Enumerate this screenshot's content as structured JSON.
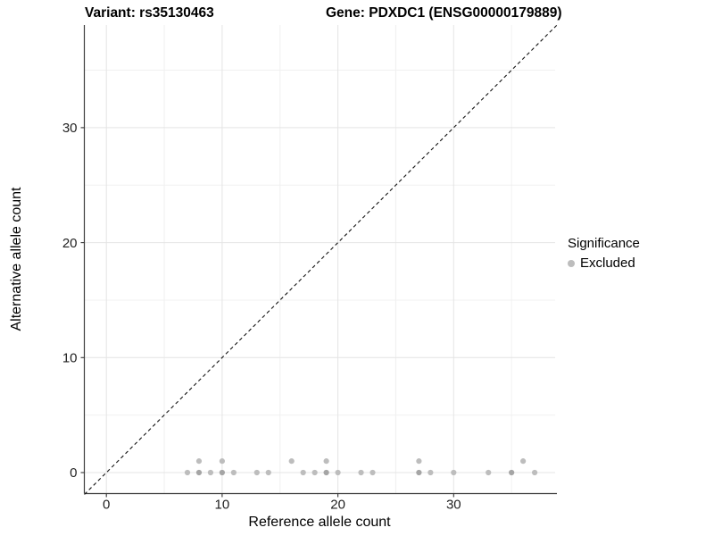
{
  "figure": {
    "title_left": "Variant: rs35130463",
    "title_right": "Gene: PDXDC1 (ENSG00000179889)"
  },
  "chart_data": {
    "type": "scatter",
    "title": "Variant: rs35130463 | Gene: PDXDC1 (ENSG00000179889)",
    "xlabel": "Reference allele count",
    "ylabel": "Alternative allele count",
    "xlim": [
      -1.9,
      38.9
    ],
    "ylim": [
      -1.9,
      38.9
    ],
    "x_major_ticks": [
      0,
      10,
      20,
      30
    ],
    "y_major_ticks": [
      0,
      10,
      20,
      30
    ],
    "grid": {
      "show": true,
      "minor_ticks": [
        5,
        15,
        25,
        35
      ],
      "major_color": "#e4e4e4",
      "minor_color": "#f0f0f0"
    },
    "axis_line_color": "#3d3d3d",
    "identity_line": {
      "style": "dashed",
      "from": [
        -1.9,
        -1.9
      ],
      "to": [
        38.9,
        38.9
      ],
      "color": "#111111",
      "note": "y = x reference line"
    },
    "series": [
      {
        "name": "Excluded",
        "color": "#bdbdbd",
        "overlap_color": "#a5a5a5",
        "points": [
          {
            "x": 7,
            "y": 0,
            "n": 1
          },
          {
            "x": 8,
            "y": 0,
            "n": 2
          },
          {
            "x": 9,
            "y": 0,
            "n": 1
          },
          {
            "x": 10,
            "y": 0,
            "n": 2
          },
          {
            "x": 11,
            "y": 0,
            "n": 1
          },
          {
            "x": 13,
            "y": 0,
            "n": 1
          },
          {
            "x": 14,
            "y": 0,
            "n": 1
          },
          {
            "x": 17,
            "y": 0,
            "n": 1
          },
          {
            "x": 18,
            "y": 0,
            "n": 1
          },
          {
            "x": 19,
            "y": 0,
            "n": 2
          },
          {
            "x": 20,
            "y": 0,
            "n": 1
          },
          {
            "x": 22,
            "y": 0,
            "n": 1
          },
          {
            "x": 23,
            "y": 0,
            "n": 1
          },
          {
            "x": 27,
            "y": 0,
            "n": 2
          },
          {
            "x": 28,
            "y": 0,
            "n": 1
          },
          {
            "x": 30,
            "y": 0,
            "n": 1
          },
          {
            "x": 33,
            "y": 0,
            "n": 1
          },
          {
            "x": 35,
            "y": 0,
            "n": 2
          },
          {
            "x": 37,
            "y": 0,
            "n": 1
          },
          {
            "x": 8,
            "y": 1,
            "n": 1
          },
          {
            "x": 10,
            "y": 1,
            "n": 1
          },
          {
            "x": 16,
            "y": 1,
            "n": 1
          },
          {
            "x": 19,
            "y": 1,
            "n": 1
          },
          {
            "x": 27,
            "y": 1,
            "n": 1
          },
          {
            "x": 36,
            "y": 1,
            "n": 1
          }
        ]
      }
    ],
    "legend": {
      "title": "Significance",
      "position": "right",
      "items": [
        {
          "label": "Excluded",
          "color": "#bdbdbd"
        }
      ]
    }
  }
}
